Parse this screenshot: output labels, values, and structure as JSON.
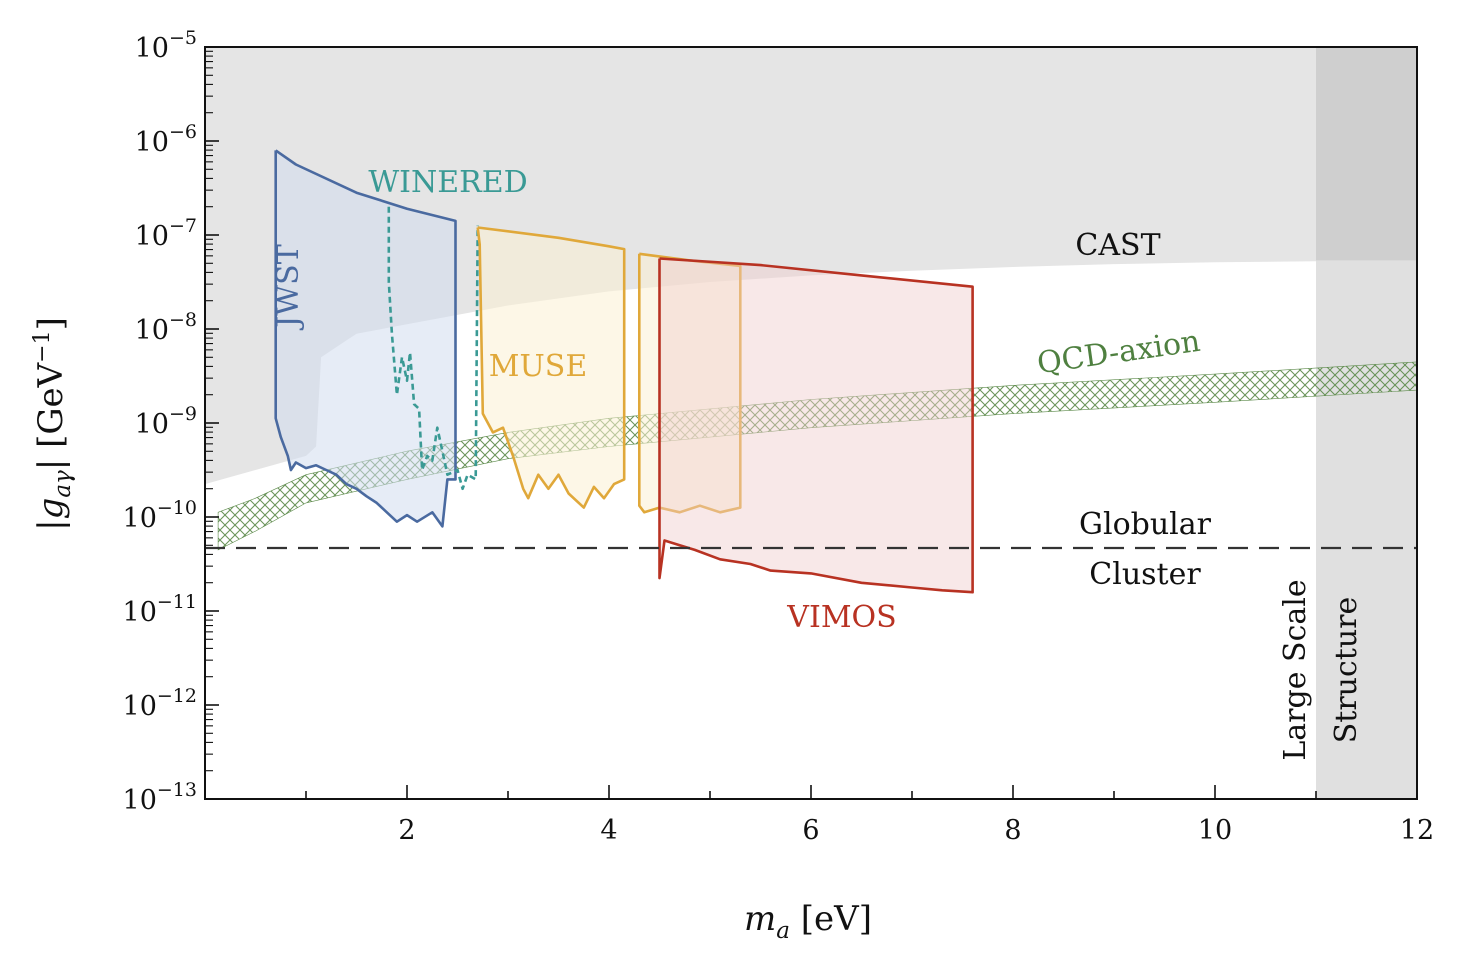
{
  "chart_data": {
    "type": "line",
    "x_axis": {
      "label_main": "m",
      "label_sub": "a",
      "label_unit": " [eV]",
      "range": [
        0,
        12
      ],
      "ticks": [
        2,
        4,
        6,
        8,
        10,
        12
      ],
      "tick_labels": [
        "2",
        "4",
        "6",
        "8",
        "10",
        "12"
      ]
    },
    "y_axis": {
      "label_main": "|g",
      "label_sub": "aγ",
      "label_unit": "| [GeV",
      "label_unit_exp": "−1",
      "label_close": "]",
      "scale": "log",
      "range_log10": [
        -13,
        -5
      ],
      "ticks_log10": [
        -5,
        -6,
        -7,
        -8,
        -9,
        -10,
        -11,
        -12,
        -13
      ],
      "tick_bases": [
        "10",
        "10",
        "10",
        "10",
        "10",
        "10",
        "10",
        "10",
        "10"
      ],
      "tick_exponents": [
        "−5",
        "−6",
        "−7",
        "−8",
        "−9",
        "−10",
        "−11",
        "−12",
        "−13"
      ]
    },
    "regions": [
      {
        "name": "CAST",
        "label": "CAST",
        "fill": "#e5e5e5",
        "lower_log10": [
          [
            0.0,
            -9.65
          ],
          [
            0.5,
            -9.5
          ],
          [
            1.0,
            -9.35
          ],
          [
            1.1,
            -9.25
          ],
          [
            1.15,
            -8.3
          ],
          [
            1.5,
            -8.05
          ],
          [
            2.0,
            -7.95
          ],
          [
            3.0,
            -7.75
          ],
          [
            4.0,
            -7.6
          ],
          [
            5.0,
            -7.5
          ],
          [
            6.0,
            -7.43
          ],
          [
            7.0,
            -7.38
          ],
          [
            8.0,
            -7.34
          ],
          [
            9.0,
            -7.31
          ],
          [
            10.0,
            -7.29
          ],
          [
            11.0,
            -7.28
          ],
          [
            12.0,
            -7.27
          ]
        ]
      },
      {
        "name": "Large Scale Structure",
        "label_line1": "Large Scale",
        "label_line2": "Structure",
        "x_range": [
          11.0,
          12.0
        ],
        "fill": "#e0e0e0"
      }
    ],
    "reference_lines": [
      {
        "name": "Globular Cluster",
        "label_line1": "Globular",
        "label_line2": "Cluster",
        "y_log10": -10.33,
        "style": "dashed",
        "color": "#333333"
      }
    ],
    "bands": [
      {
        "name": "QCD-axion",
        "label": "QCD-axion",
        "color": "#5c8a4a",
        "lower_log10": [
          [
            0.13,
            -10.35
          ],
          [
            0.5,
            -10.15
          ],
          [
            1,
            -9.85
          ],
          [
            2,
            -9.6
          ],
          [
            3,
            -9.38
          ],
          [
            4,
            -9.25
          ],
          [
            6,
            -9.05
          ],
          [
            8,
            -8.9
          ],
          [
            10,
            -8.78
          ],
          [
            12,
            -8.65
          ]
        ],
        "upper_log10": [
          [
            0.13,
            -9.95
          ],
          [
            0.5,
            -9.8
          ],
          [
            1,
            -9.55
          ],
          [
            2,
            -9.3
          ],
          [
            3,
            -9.1
          ],
          [
            4,
            -8.95
          ],
          [
            6,
            -8.75
          ],
          [
            8,
            -8.6
          ],
          [
            10,
            -8.48
          ],
          [
            12,
            -8.35
          ]
        ]
      }
    ],
    "series": [
      {
        "name": "JWST",
        "label": "JWST",
        "color": "#4a6aa0",
        "fill": "rgba(210,220,238,0.55)",
        "style": "solid",
        "points_log10": [
          [
            0.7,
            -6.1
          ],
          [
            0.9,
            -6.25
          ],
          [
            1.5,
            -6.55
          ],
          [
            2.0,
            -6.72
          ],
          [
            2.48,
            -6.85
          ],
          [
            2.48,
            -9.6
          ],
          [
            2.4,
            -9.6
          ],
          [
            2.35,
            -10.1
          ],
          [
            2.25,
            -9.95
          ],
          [
            2.1,
            -10.05
          ],
          [
            2.0,
            -9.98
          ],
          [
            1.9,
            -10.05
          ],
          [
            1.8,
            -9.95
          ],
          [
            1.7,
            -9.85
          ],
          [
            1.6,
            -9.78
          ],
          [
            1.5,
            -9.7
          ],
          [
            1.4,
            -9.65
          ],
          [
            1.3,
            -9.55
          ],
          [
            1.2,
            -9.5
          ],
          [
            1.1,
            -9.45
          ],
          [
            1.0,
            -9.48
          ],
          [
            0.9,
            -9.42
          ],
          [
            0.85,
            -9.5
          ],
          [
            0.82,
            -9.35
          ],
          [
            0.75,
            -9.15
          ],
          [
            0.7,
            -8.95
          ],
          [
            0.7,
            -6.1
          ]
        ]
      },
      {
        "name": "WINERED",
        "label": "WINERED",
        "color": "#3a9a95",
        "style": "dashed",
        "points_log10": [
          [
            1.82,
            -6.7
          ],
          [
            1.82,
            -7.5
          ],
          [
            1.85,
            -8.05
          ],
          [
            1.9,
            -8.7
          ],
          [
            1.95,
            -8.3
          ],
          [
            2.0,
            -8.55
          ],
          [
            2.03,
            -8.25
          ],
          [
            2.07,
            -8.8
          ],
          [
            2.12,
            -8.85
          ],
          [
            2.15,
            -9.5
          ],
          [
            2.2,
            -9.35
          ],
          [
            2.25,
            -9.4
          ],
          [
            2.3,
            -9.05
          ],
          [
            2.35,
            -9.3
          ],
          [
            2.4,
            -9.55
          ],
          [
            2.5,
            -9.5
          ],
          [
            2.55,
            -9.7
          ],
          [
            2.6,
            -9.55
          ],
          [
            2.68,
            -9.6
          ],
          [
            2.7,
            -6.9
          ]
        ]
      },
      {
        "name": "MUSE",
        "label": "MUSE",
        "color": "#e0a83a",
        "fill": "rgba(252,240,212,0.55)",
        "style": "solid",
        "points_log10": [
          [
            2.7,
            -6.92
          ],
          [
            3.5,
            -7.03
          ],
          [
            4.0,
            -7.12
          ],
          [
            4.15,
            -7.15
          ],
          [
            4.15,
            -9.6
          ],
          [
            4.05,
            -9.65
          ],
          [
            3.95,
            -9.8
          ],
          [
            3.85,
            -9.68
          ],
          [
            3.75,
            -9.9
          ],
          [
            3.6,
            -9.75
          ],
          [
            3.5,
            -9.55
          ],
          [
            3.4,
            -9.7
          ],
          [
            3.3,
            -9.55
          ],
          [
            3.2,
            -9.8
          ],
          [
            3.15,
            -9.7
          ],
          [
            3.05,
            -9.35
          ],
          [
            2.95,
            -9.05
          ],
          [
            2.85,
            -9.1
          ],
          [
            2.75,
            -8.9
          ],
          [
            2.72,
            -7.1
          ],
          [
            2.7,
            -6.92
          ]
        ]
      },
      {
        "name": "MUSE_NFM",
        "label": "",
        "color": "#e0a83a",
        "fill": "rgba(252,240,212,0.55)",
        "style": "solid",
        "points_log10": [
          [
            4.3,
            -7.2
          ],
          [
            4.8,
            -7.27
          ],
          [
            5.3,
            -7.33
          ],
          [
            5.3,
            -9.9
          ],
          [
            5.1,
            -9.95
          ],
          [
            4.9,
            -9.88
          ],
          [
            4.7,
            -9.95
          ],
          [
            4.5,
            -9.9
          ],
          [
            4.35,
            -9.95
          ],
          [
            4.3,
            -9.88
          ],
          [
            4.3,
            -7.2
          ]
        ]
      },
      {
        "name": "VIMOS",
        "label": "VIMOS",
        "color": "#b83222",
        "fill": "rgba(240,205,205,0.45)",
        "style": "solid",
        "points_log10": [
          [
            4.5,
            -7.25
          ],
          [
            5.5,
            -7.32
          ],
          [
            6.5,
            -7.43
          ],
          [
            7.6,
            -7.55
          ],
          [
            7.6,
            -10.8
          ],
          [
            7.3,
            -10.78
          ],
          [
            7.0,
            -10.75
          ],
          [
            6.5,
            -10.7
          ],
          [
            6.0,
            -10.6
          ],
          [
            5.6,
            -10.57
          ],
          [
            5.4,
            -10.5
          ],
          [
            5.1,
            -10.45
          ],
          [
            4.85,
            -10.35
          ],
          [
            4.7,
            -10.3
          ],
          [
            4.55,
            -10.25
          ],
          [
            4.5,
            -10.65
          ],
          [
            4.5,
            -7.25
          ]
        ]
      }
    ]
  }
}
